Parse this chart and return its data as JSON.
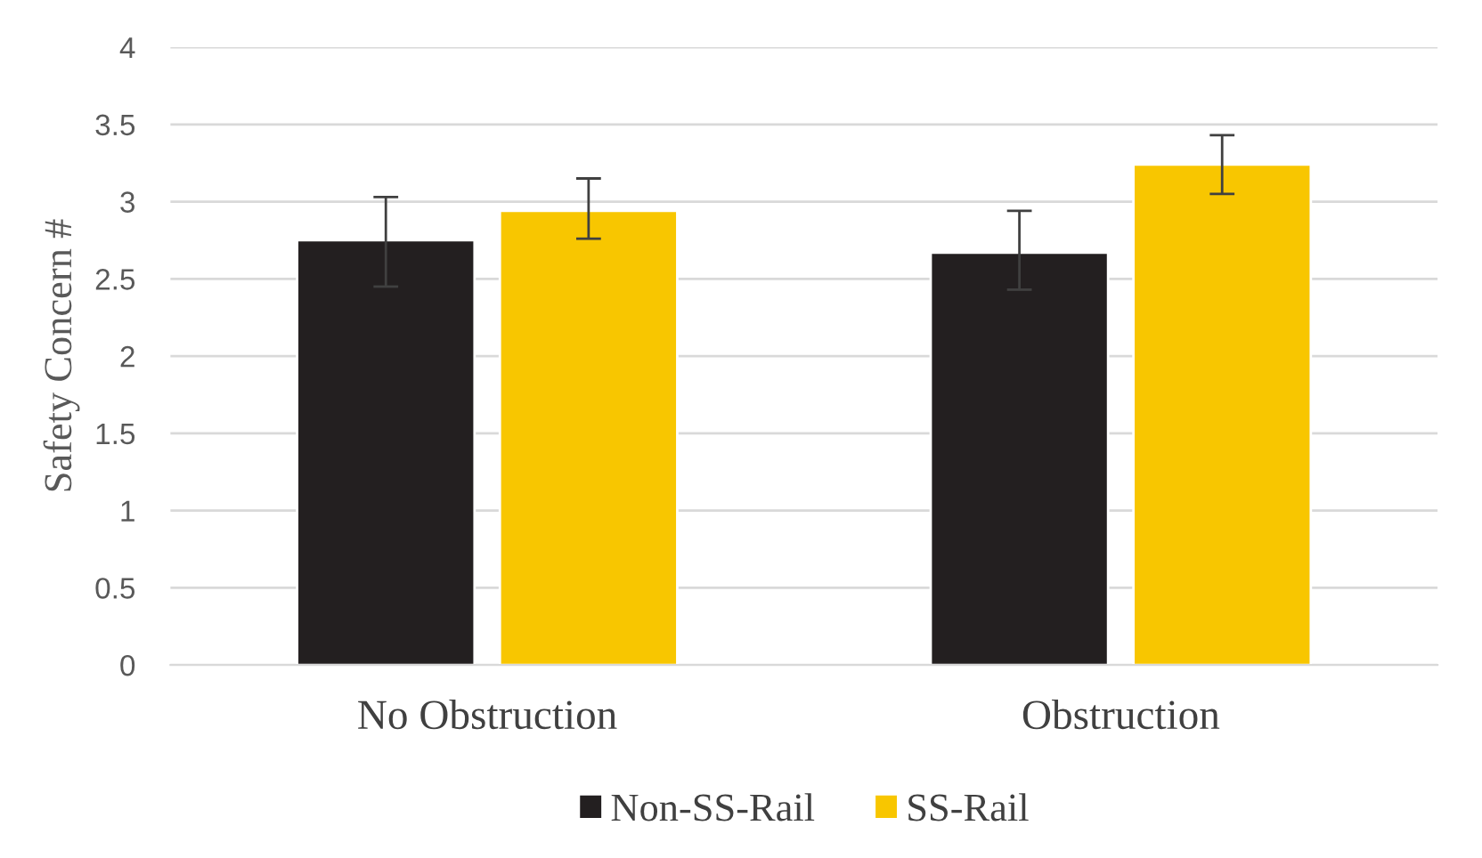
{
  "chart_data": {
    "type": "bar",
    "ylabel": "Safety Concern #",
    "categories": [
      "No Obstruction",
      "Obstruction"
    ],
    "series": [
      {
        "name": "Non-SS-Rail",
        "color": "#231f20",
        "values": [
          2.75,
          2.67
        ],
        "errors": [
          [
            2.45,
            3.03
          ],
          [
            2.43,
            2.94
          ]
        ]
      },
      {
        "name": "SS-Rail",
        "color": "#f8c600",
        "values": [
          2.94,
          3.24
        ],
        "errors": [
          [
            2.76,
            3.15
          ],
          [
            3.05,
            3.43
          ]
        ]
      }
    ],
    "ylim": [
      0,
      4
    ],
    "yticks": [
      0,
      0.5,
      1,
      1.5,
      2,
      2.5,
      3,
      3.5,
      4
    ],
    "grid": "y",
    "legend": "bottom"
  }
}
